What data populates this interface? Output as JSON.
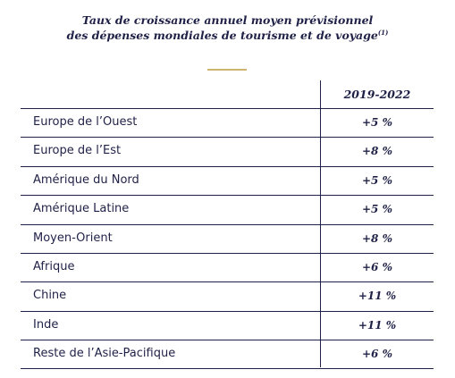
{
  "title": {
    "line1": "Taux de croissance annuel moyen prévisionnel",
    "line2": "des dépenses mondiales de tourisme et de voyage",
    "footnote": "(1)"
  },
  "table": {
    "column_header": "2019-2022",
    "rows": [
      {
        "region": "Europe de l’Ouest",
        "value": "+5 %"
      },
      {
        "region": "Europe de l’Est",
        "value": "+8 %"
      },
      {
        "region": "Amérique du Nord",
        "value": "+5 %"
      },
      {
        "region": "Amérique Latine",
        "value": "+5 %"
      },
      {
        "region": "Moyen-Orient",
        "value": "+8 %"
      },
      {
        "region": "Afrique",
        "value": "+6 %"
      },
      {
        "region": "Chine",
        "value": "+11 %"
      },
      {
        "region": "Inde",
        "value": "+11 %"
      },
      {
        "region": "Reste de l’Asie-Pacifique",
        "value": "+6 %"
      }
    ]
  },
  "colors": {
    "text": "#1f2147",
    "accent_rule": "#cdb56f"
  }
}
